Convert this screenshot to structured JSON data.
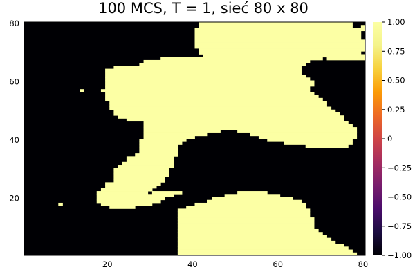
{
  "chart_data": {
    "type": "heatmap",
    "title": "100 MCS, T = 1, sieć 80 x 80",
    "xlabel": "",
    "ylabel": "",
    "grid": false,
    "legend": "colorbar right",
    "xlim": [
      0.5,
      80.5
    ],
    "ylim": [
      0.5,
      80.5
    ],
    "xticks": [
      20,
      40,
      60,
      80
    ],
    "yticks": [
      20,
      40,
      60,
      80
    ],
    "colorbar": {
      "range": [
        -1.0,
        1.0
      ],
      "ticks": [
        1.0,
        0.75,
        0.5,
        0.25,
        0,
        -0.25,
        -0.5,
        -0.75,
        -1.0
      ],
      "tick_labels": [
        "1.00",
        "0.75",
        "0.50",
        "0.25",
        "0",
        "−0.25",
        "−0.50",
        "−0.75",
        "−1.00"
      ],
      "colormap": "inferno",
      "min_color": "#000004",
      "max_color": "#fcffa4"
    },
    "values_description": "spin lattice 80x80, each cell -1 or +1",
    "spin_up_rows": [
      {
        "y": 80,
        "runs": [
          [
            42,
            77
          ]
        ]
      },
      {
        "y": 79,
        "runs": [
          [
            42,
            77
          ],
          [
            80,
            80
          ]
        ]
      },
      {
        "y": 78,
        "runs": [
          [
            41,
            78
          ],
          [
            79,
            80
          ]
        ]
      },
      {
        "y": 77,
        "runs": [
          [
            41,
            79
          ]
        ]
      },
      {
        "y": 76,
        "runs": [
          [
            41,
            79
          ]
        ]
      },
      {
        "y": 75,
        "runs": [
          [
            41,
            79
          ]
        ]
      },
      {
        "y": 74,
        "runs": [
          [
            41,
            80
          ]
        ]
      },
      {
        "y": 73,
        "runs": [
          [
            41,
            80
          ]
        ]
      },
      {
        "y": 72,
        "runs": [
          [
            41,
            80
          ]
        ]
      },
      {
        "y": 71,
        "runs": [
          [
            42,
            80
          ]
        ]
      },
      {
        "y": 70,
        "runs": [
          [
            42,
            79
          ]
        ]
      },
      {
        "y": 69,
        "runs": [
          [
            43,
            80
          ]
        ]
      },
      {
        "y": 68,
        "runs": [
          [
            33,
            70
          ],
          [
            72,
            80
          ]
        ]
      },
      {
        "y": 67,
        "runs": [
          [
            29,
            67
          ]
        ]
      },
      {
        "y": 66,
        "runs": [
          [
            28,
            66
          ]
        ]
      },
      {
        "y": 65,
        "runs": [
          [
            22,
            65
          ]
        ]
      },
      {
        "y": 64,
        "runs": [
          [
            20,
            65
          ]
        ]
      },
      {
        "y": 63,
        "runs": [
          [
            20,
            65
          ]
        ]
      },
      {
        "y": 62,
        "runs": [
          [
            20,
            66
          ]
        ]
      },
      {
        "y": 61,
        "runs": [
          [
            20,
            67
          ]
        ]
      },
      {
        "y": 60,
        "runs": [
          [
            20,
            68
          ]
        ]
      },
      {
        "y": 59,
        "runs": [
          [
            20,
            68
          ]
        ]
      },
      {
        "y": 58,
        "runs": [
          [
            20,
            67
          ]
        ]
      },
      {
        "y": 57,
        "runs": [
          [
            14,
            14
          ],
          [
            19,
            67
          ]
        ]
      },
      {
        "y": 56,
        "runs": [
          [
            20,
            68
          ]
        ]
      },
      {
        "y": 55,
        "runs": [
          [
            20,
            69
          ]
        ]
      },
      {
        "y": 54,
        "runs": [
          [
            20,
            70
          ]
        ]
      },
      {
        "y": 53,
        "runs": [
          [
            21,
            71
          ]
        ]
      },
      {
        "y": 52,
        "runs": [
          [
            21,
            71
          ]
        ]
      },
      {
        "y": 51,
        "runs": [
          [
            21,
            72
          ]
        ]
      },
      {
        "y": 50,
        "runs": [
          [
            22,
            73
          ]
        ]
      },
      {
        "y": 49,
        "runs": [
          [
            22,
            74
          ]
        ]
      },
      {
        "y": 48,
        "runs": [
          [
            23,
            75
          ]
        ]
      },
      {
        "y": 47,
        "runs": [
          [
            25,
            75
          ]
        ]
      },
      {
        "y": 46,
        "runs": [
          [
            29,
            76
          ]
        ]
      },
      {
        "y": 45,
        "runs": [
          [
            29,
            77
          ]
        ]
      },
      {
        "y": 44,
        "runs": [
          [
            29,
            78
          ]
        ]
      },
      {
        "y": 43,
        "runs": [
          [
            29,
            46
          ],
          [
            51,
            78
          ]
        ]
      },
      {
        "y": 42,
        "runs": [
          [
            29,
            43
          ],
          [
            54,
            78
          ]
        ]
      },
      {
        "y": 41,
        "runs": [
          [
            29,
            40
          ],
          [
            56,
            78
          ]
        ]
      },
      {
        "y": 40,
        "runs": [
          [
            28,
            38
          ],
          [
            58,
            77
          ]
        ]
      },
      {
        "y": 39,
        "runs": [
          [
            28,
            37
          ],
          [
            62,
            77
          ]
        ]
      },
      {
        "y": 38,
        "runs": [
          [
            28,
            36
          ],
          [
            67,
            76
          ]
        ]
      },
      {
        "y": 37,
        "runs": [
          [
            28,
            36
          ]
        ]
      },
      {
        "y": 36,
        "runs": [
          [
            28,
            36
          ]
        ]
      },
      {
        "y": 35,
        "runs": [
          [
            27,
            36
          ]
        ]
      },
      {
        "y": 34,
        "runs": [
          [
            25,
            35
          ]
        ]
      },
      {
        "y": 33,
        "runs": [
          [
            25,
            35
          ]
        ]
      },
      {
        "y": 32,
        "runs": [
          [
            24,
            35
          ]
        ]
      },
      {
        "y": 31,
        "runs": [
          [
            23,
            35
          ]
        ]
      },
      {
        "y": 30,
        "runs": [
          [
            22,
            34
          ]
        ]
      },
      {
        "y": 29,
        "runs": [
          [
            22,
            34
          ]
        ]
      },
      {
        "y": 28,
        "runs": [
          [
            22,
            34
          ]
        ]
      },
      {
        "y": 27,
        "runs": [
          [
            22,
            33
          ]
        ]
      },
      {
        "y": 26,
        "runs": [
          [
            22,
            33
          ]
        ]
      },
      {
        "y": 25,
        "runs": [
          [
            20,
            32
          ]
        ]
      },
      {
        "y": 24,
        "runs": [
          [
            20,
            31
          ]
        ]
      },
      {
        "y": 23,
        "runs": [
          [
            19,
            30
          ],
          [
            30,
            30
          ]
        ]
      },
      {
        "y": 22,
        "runs": [
          [
            18,
            29
          ],
          [
            31,
            37
          ],
          [
            51,
            57
          ]
        ]
      },
      {
        "y": 21,
        "runs": [
          [
            18,
            35
          ],
          [
            48,
            60
          ]
        ]
      },
      {
        "y": 20,
        "runs": [
          [
            18,
            33
          ],
          [
            45,
            63
          ]
        ]
      },
      {
        "y": 19,
        "runs": [
          [
            18,
            32
          ],
          [
            44,
            65
          ]
        ]
      },
      {
        "y": 18,
        "runs": [
          [
            19,
            30
          ],
          [
            41,
            66
          ]
        ]
      },
      {
        "y": 17,
        "runs": [
          [
            21,
            26
          ],
          [
            39,
            66
          ]
        ]
      },
      {
        "y": 16,
        "runs": [
          [
            37,
            67
          ]
        ]
      },
      {
        "y": 15,
        "runs": [
          [
            37,
            67
          ]
        ]
      },
      {
        "y": 14,
        "runs": [
          [
            37,
            67
          ]
        ]
      },
      {
        "y": 13,
        "runs": [
          [
            37,
            68
          ]
        ]
      },
      {
        "y": 12,
        "runs": [
          [
            37,
            68
          ]
        ]
      },
      {
        "y": 11,
        "runs": [
          [
            37,
            68
          ]
        ]
      },
      {
        "y": 10,
        "runs": [
          [
            37,
            68
          ]
        ]
      },
      {
        "y": 9,
        "runs": [
          [
            37,
            69
          ]
        ]
      },
      {
        "y": 8,
        "runs": [
          [
            37,
            70
          ]
        ]
      },
      {
        "y": 7,
        "runs": [
          [
            37,
            71
          ]
        ]
      },
      {
        "y": 6,
        "runs": [
          [
            37,
            72
          ]
        ]
      },
      {
        "y": 5,
        "runs": [
          [
            37,
            73
          ]
        ]
      },
      {
        "y": 4,
        "runs": [
          [
            37,
            75
          ]
        ]
      },
      {
        "y": 3,
        "runs": [
          [
            37,
            76
          ]
        ]
      },
      {
        "y": 2,
        "runs": [
          [
            37,
            77
          ]
        ]
      },
      {
        "y": 1,
        "runs": [
          [
            37,
            78
          ]
        ]
      }
    ],
    "isolated_up_points": [
      [
        9,
        18
      ],
      [
        30,
        23
      ],
      [
        31,
        24
      ]
    ]
  }
}
